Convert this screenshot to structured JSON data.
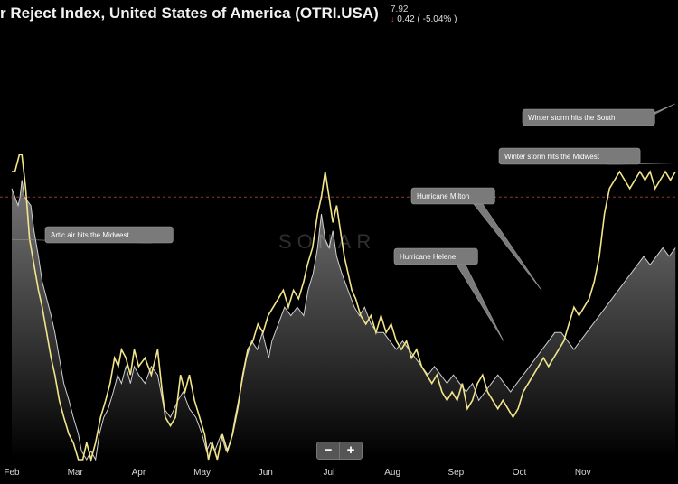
{
  "header": {
    "title": "r Reject Index, United States of America (OTRI.USA)",
    "value": "7.92",
    "change": "0.42 ( -5.04% )",
    "change_direction": "down"
  },
  "watermark": "SONAR",
  "zoom": {
    "minus": "−",
    "plus": "+"
  },
  "colors": {
    "primary_line": "#f2e58a",
    "secondary_line": "#cfcfcf",
    "area_fill": "#6a6a6a",
    "reference_line": "#8a3b2a"
  },
  "chart_data": {
    "type": "line",
    "title": "r Reject Index, United States of America (OTRI.USA)",
    "x_tick_labels": [
      "Feb",
      "Mar",
      "Apr",
      "May",
      "Jun",
      "Jul",
      "Aug",
      "Sep",
      "Oct",
      "Nov"
    ],
    "x_domain": [
      0,
      10.5
    ],
    "y_domain": [
      0,
      25
    ],
    "grid": false,
    "reference_line": 15.5,
    "series": [
      {
        "style": "line",
        "points": [
          [
            0.0,
            16.0
          ],
          [
            0.1,
            15.0
          ],
          [
            0.13,
            15.5
          ],
          [
            0.16,
            16.5
          ],
          [
            0.2,
            15.5
          ],
          [
            0.3,
            15.0
          ],
          [
            0.35,
            13.5
          ],
          [
            0.42,
            12.0
          ],
          [
            0.48,
            10.5
          ],
          [
            0.55,
            9.5
          ],
          [
            0.62,
            8.5
          ],
          [
            0.68,
            7.5
          ],
          [
            0.75,
            6.0
          ],
          [
            0.82,
            4.5
          ],
          [
            0.9,
            3.5
          ],
          [
            0.97,
            2.5
          ],
          [
            1.05,
            1.5
          ],
          [
            1.1,
            0.5
          ],
          [
            1.18,
            0.0
          ],
          [
            1.25,
            0.5
          ],
          [
            1.32,
            0.0
          ],
          [
            1.38,
            1.5
          ],
          [
            1.45,
            2.5
          ],
          [
            1.52,
            3.0
          ],
          [
            1.6,
            4.0
          ],
          [
            1.67,
            5.0
          ],
          [
            1.73,
            4.5
          ],
          [
            1.8,
            5.5
          ],
          [
            1.87,
            4.5
          ],
          [
            1.93,
            5.5
          ],
          [
            2.0,
            5.0
          ],
          [
            2.1,
            4.5
          ],
          [
            2.2,
            5.5
          ],
          [
            2.3,
            5.0
          ],
          [
            2.4,
            3.0
          ],
          [
            2.5,
            2.5
          ],
          [
            2.62,
            3.5
          ],
          [
            2.7,
            4.0
          ],
          [
            2.8,
            3.0
          ],
          [
            2.9,
            2.5
          ],
          [
            3.0,
            1.5
          ],
          [
            3.07,
            0.5
          ],
          [
            3.13,
            1.0
          ],
          [
            3.2,
            0.5
          ],
          [
            3.3,
            1.5
          ],
          [
            3.38,
            0.5
          ],
          [
            3.45,
            1.0
          ],
          [
            3.52,
            2.5
          ],
          [
            3.6,
            4.0
          ],
          [
            3.7,
            6.0
          ],
          [
            3.78,
            7.0
          ],
          [
            3.87,
            6.5
          ],
          [
            3.95,
            7.5
          ],
          [
            4.05,
            6.0
          ],
          [
            4.1,
            7.0
          ],
          [
            4.2,
            8.0
          ],
          [
            4.3,
            9.0
          ],
          [
            4.4,
            8.5
          ],
          [
            4.5,
            9.0
          ],
          [
            4.6,
            8.5
          ],
          [
            4.67,
            10.0
          ],
          [
            4.75,
            11.0
          ],
          [
            4.82,
            12.5
          ],
          [
            4.88,
            14.5
          ],
          [
            4.94,
            13.0
          ],
          [
            5.0,
            12.5
          ],
          [
            5.06,
            13.5
          ],
          [
            5.12,
            12.0
          ],
          [
            5.2,
            11.0
          ],
          [
            5.3,
            10.0
          ],
          [
            5.4,
            9.0
          ],
          [
            5.48,
            8.5
          ],
          [
            5.56,
            9.0
          ],
          [
            5.66,
            8.0
          ],
          [
            5.76,
            7.5
          ],
          [
            5.86,
            7.5
          ],
          [
            5.96,
            7.0
          ],
          [
            6.06,
            6.5
          ],
          [
            6.16,
            7.0
          ],
          [
            6.26,
            6.5
          ],
          [
            6.36,
            6.0
          ],
          [
            6.46,
            5.5
          ],
          [
            6.56,
            5.0
          ],
          [
            6.66,
            5.5
          ],
          [
            6.76,
            5.0
          ],
          [
            6.86,
            4.5
          ],
          [
            6.96,
            5.0
          ],
          [
            7.06,
            4.5
          ],
          [
            7.16,
            4.0
          ],
          [
            7.26,
            4.5
          ],
          [
            7.36,
            3.5
          ],
          [
            7.46,
            4.0
          ],
          [
            7.56,
            4.5
          ],
          [
            7.66,
            5.0
          ],
          [
            7.76,
            4.5
          ],
          [
            7.86,
            4.0
          ],
          [
            7.96,
            4.5
          ],
          [
            8.06,
            5.0
          ],
          [
            8.16,
            5.5
          ],
          [
            8.26,
            6.0
          ],
          [
            8.36,
            6.5
          ],
          [
            8.46,
            7.0
          ],
          [
            8.56,
            7.5
          ],
          [
            8.66,
            7.5
          ],
          [
            8.76,
            7.0
          ],
          [
            8.86,
            6.5
          ],
          [
            8.96,
            7.0
          ],
          [
            9.06,
            7.5
          ],
          [
            9.16,
            8.0
          ],
          [
            9.26,
            8.5
          ],
          [
            9.36,
            9.0
          ],
          [
            9.46,
            9.5
          ],
          [
            9.56,
            10.0
          ],
          [
            9.66,
            10.5
          ],
          [
            9.76,
            11.0
          ],
          [
            9.86,
            11.5
          ],
          [
            9.96,
            12.0
          ],
          [
            10.06,
            11.5
          ],
          [
            10.16,
            12.0
          ],
          [
            10.26,
            12.5
          ],
          [
            10.36,
            12.0
          ],
          [
            10.46,
            12.5
          ]
        ]
      },
      {
        "style": "line",
        "points": [
          [
            0.0,
            17.0
          ],
          [
            0.05,
            17.0
          ],
          [
            0.12,
            18.0
          ],
          [
            0.16,
            18.0
          ],
          [
            0.22,
            16.0
          ],
          [
            0.28,
            13.0
          ],
          [
            0.35,
            11.5
          ],
          [
            0.42,
            10.0
          ],
          [
            0.48,
            9.0
          ],
          [
            0.55,
            7.5
          ],
          [
            0.62,
            6.0
          ],
          [
            0.68,
            5.0
          ],
          [
            0.75,
            3.5
          ],
          [
            0.82,
            2.5
          ],
          [
            0.9,
            1.5
          ],
          [
            0.97,
            1.0
          ],
          [
            1.05,
            0.0
          ],
          [
            1.12,
            0.0
          ],
          [
            1.18,
            1.0
          ],
          [
            1.25,
            0.0
          ],
          [
            1.32,
            1.0
          ],
          [
            1.4,
            2.5
          ],
          [
            1.48,
            3.5
          ],
          [
            1.55,
            4.5
          ],
          [
            1.62,
            6.0
          ],
          [
            1.68,
            5.5
          ],
          [
            1.73,
            6.5
          ],
          [
            1.8,
            6.0
          ],
          [
            1.87,
            5.0
          ],
          [
            1.93,
            6.5
          ],
          [
            2.0,
            5.5
          ],
          [
            2.1,
            6.0
          ],
          [
            2.2,
            5.0
          ],
          [
            2.3,
            6.5
          ],
          [
            2.37,
            4.0
          ],
          [
            2.42,
            2.5
          ],
          [
            2.5,
            2.0
          ],
          [
            2.58,
            2.5
          ],
          [
            2.66,
            5.0
          ],
          [
            2.73,
            4.0
          ],
          [
            2.8,
            5.0
          ],
          [
            2.88,
            3.5
          ],
          [
            2.96,
            2.5
          ],
          [
            3.04,
            1.5
          ],
          [
            3.1,
            0.0
          ],
          [
            3.16,
            1.0
          ],
          [
            3.24,
            0.0
          ],
          [
            3.32,
            1.5
          ],
          [
            3.4,
            0.5
          ],
          [
            3.48,
            1.5
          ],
          [
            3.56,
            3.0
          ],
          [
            3.64,
            5.0
          ],
          [
            3.72,
            6.5
          ],
          [
            3.8,
            7.0
          ],
          [
            3.88,
            8.0
          ],
          [
            3.96,
            7.5
          ],
          [
            4.04,
            8.5
          ],
          [
            4.12,
            9.0
          ],
          [
            4.2,
            9.5
          ],
          [
            4.28,
            10.0
          ],
          [
            4.36,
            9.0
          ],
          [
            4.44,
            10.0
          ],
          [
            4.52,
            9.5
          ],
          [
            4.6,
            10.5
          ],
          [
            4.66,
            11.5
          ],
          [
            4.74,
            12.5
          ],
          [
            4.82,
            14.5
          ],
          [
            4.88,
            15.5
          ],
          [
            4.94,
            17.0
          ],
          [
            5.0,
            15.5
          ],
          [
            5.06,
            14.0
          ],
          [
            5.12,
            15.0
          ],
          [
            5.18,
            13.5
          ],
          [
            5.24,
            12.0
          ],
          [
            5.3,
            11.0
          ],
          [
            5.36,
            10.0
          ],
          [
            5.42,
            9.5
          ],
          [
            5.5,
            8.5
          ],
          [
            5.58,
            8.0
          ],
          [
            5.66,
            8.5
          ],
          [
            5.74,
            7.5
          ],
          [
            5.82,
            8.5
          ],
          [
            5.9,
            7.5
          ],
          [
            5.98,
            8.0
          ],
          [
            6.06,
            7.0
          ],
          [
            6.14,
            6.5
          ],
          [
            6.22,
            7.0
          ],
          [
            6.3,
            6.0
          ],
          [
            6.38,
            6.5
          ],
          [
            6.46,
            5.5
          ],
          [
            6.54,
            5.0
          ],
          [
            6.62,
            4.5
          ],
          [
            6.7,
            5.0
          ],
          [
            6.78,
            4.0
          ],
          [
            6.86,
            3.5
          ],
          [
            6.94,
            4.0
          ],
          [
            7.02,
            3.5
          ],
          [
            7.1,
            4.5
          ],
          [
            7.18,
            3.0
          ],
          [
            7.26,
            3.5
          ],
          [
            7.34,
            4.5
          ],
          [
            7.42,
            5.0
          ],
          [
            7.5,
            4.0
          ],
          [
            7.58,
            3.5
          ],
          [
            7.66,
            3.0
          ],
          [
            7.74,
            3.5
          ],
          [
            7.82,
            3.0
          ],
          [
            7.9,
            2.5
          ],
          [
            7.98,
            3.0
          ],
          [
            8.06,
            4.0
          ],
          [
            8.14,
            4.5
          ],
          [
            8.22,
            5.0
          ],
          [
            8.3,
            5.5
          ],
          [
            8.38,
            6.0
          ],
          [
            8.46,
            5.5
          ],
          [
            8.54,
            6.0
          ],
          [
            8.62,
            6.5
          ],
          [
            8.7,
            7.0
          ],
          [
            8.78,
            8.0
          ],
          [
            8.86,
            9.0
          ],
          [
            8.94,
            8.5
          ],
          [
            9.02,
            9.0
          ],
          [
            9.1,
            9.5
          ],
          [
            9.18,
            10.5
          ],
          [
            9.26,
            12.0
          ],
          [
            9.34,
            14.5
          ],
          [
            9.42,
            16.0
          ],
          [
            9.5,
            16.5
          ],
          [
            9.58,
            17.0
          ],
          [
            9.66,
            16.5
          ],
          [
            9.74,
            16.0
          ],
          [
            9.82,
            16.5
          ],
          [
            9.9,
            17.0
          ],
          [
            9.98,
            16.5
          ],
          [
            10.06,
            17.0
          ],
          [
            10.14,
            16.0
          ],
          [
            10.22,
            16.5
          ],
          [
            10.3,
            17.0
          ],
          [
            10.38,
            16.5
          ],
          [
            10.46,
            17.0
          ]
        ]
      }
    ],
    "annotations": [
      {
        "text": "Artic air hits the Midwest",
        "x": 0.0,
        "y": 13.0
      },
      {
        "text": "Hurricane Milton",
        "x": 8.35,
        "y": 10.0
      },
      {
        "text": "Hurricane Helene",
        "x": 7.75,
        "y": 7.0
      },
      {
        "text": "Winter storm hits the Midwest",
        "x": 10.45,
        "y": 17.5
      },
      {
        "text": "Winter storm hits the South",
        "x": 10.45,
        "y": 21.0
      }
    ]
  }
}
